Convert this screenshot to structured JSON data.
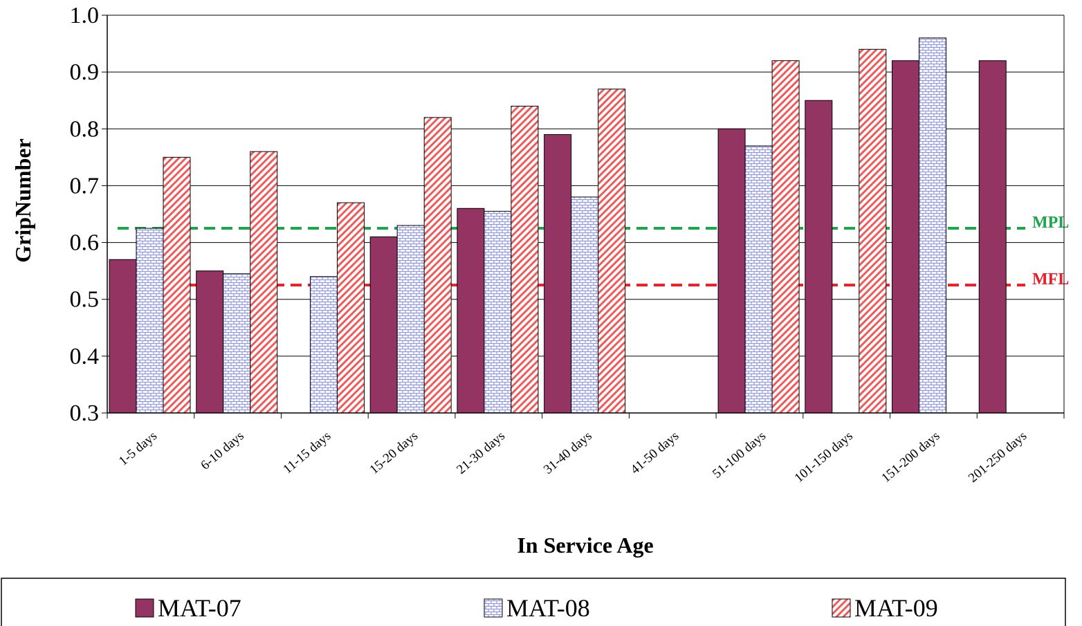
{
  "chart_data": {
    "type": "bar",
    "xlabel": "In Service Age",
    "ylabel": "GripNumber",
    "ylim": [
      0.3,
      1.0
    ],
    "yticks": [
      "0.3",
      "0.4",
      "0.5",
      "0.6",
      "0.7",
      "0.8",
      "0.9",
      "1.0"
    ],
    "grid": true,
    "legend_position": "bottom",
    "categories": [
      "1-5 days",
      "6-10 days",
      "11-15 days",
      "15-20 days",
      "21-30 days",
      "31-40 days",
      "41-50 days",
      "51-100 days",
      "101-150 days",
      "151-200 days",
      "201-250 days"
    ],
    "series": [
      {
        "name": "MAT-07",
        "color": "#943463",
        "pattern": "solid",
        "values": [
          0.57,
          0.55,
          null,
          0.61,
          0.66,
          0.79,
          null,
          0.8,
          0.85,
          0.92,
          0.92
        ]
      },
      {
        "name": "MAT-08",
        "color": "#8f96ee",
        "pattern": "brick",
        "values": [
          0.625,
          0.545,
          0.54,
          0.63,
          0.655,
          0.68,
          null,
          0.77,
          null,
          0.96,
          null
        ]
      },
      {
        "name": "MAT-09",
        "color": "#f05a5a",
        "pattern": "diagonal",
        "values": [
          0.75,
          0.76,
          0.67,
          0.82,
          0.84,
          0.87,
          null,
          0.92,
          0.94,
          null,
          null
        ]
      }
    ],
    "reference_lines": [
      {
        "label": "MPL",
        "value": 0.625,
        "color": "#1aa64b"
      },
      {
        "label": "MFL",
        "value": 0.525,
        "color": "#ee1c24"
      }
    ]
  }
}
